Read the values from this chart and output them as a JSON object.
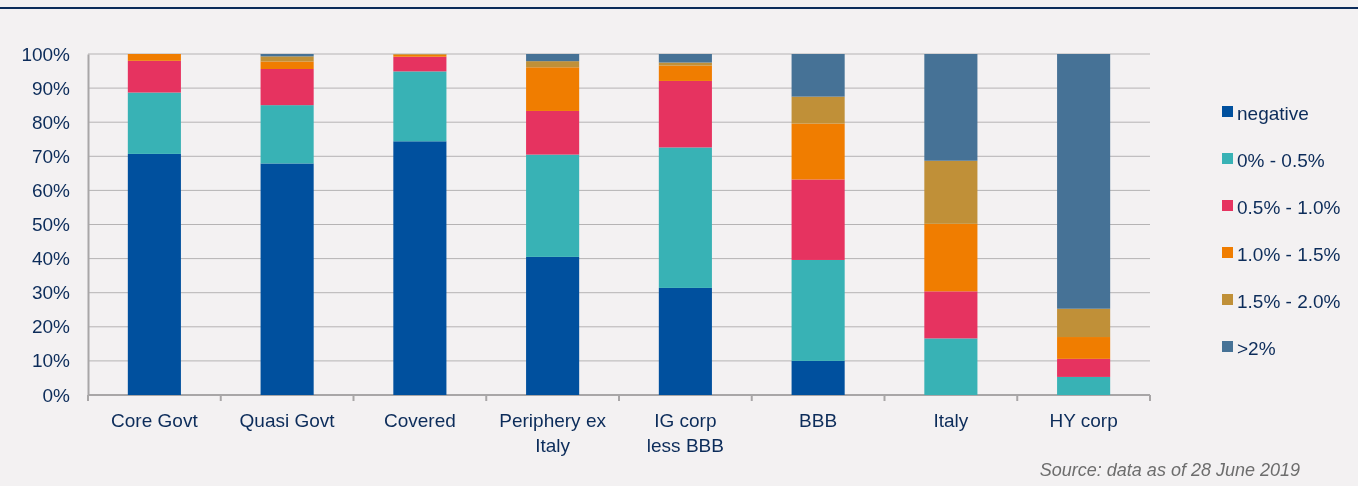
{
  "chart_data": {
    "type": "bar",
    "stacked": true,
    "categories": [
      "Core Govt",
      "Quasi Govt",
      "Covered",
      "Periphery ex Italy",
      "IG corp less BBB",
      "BBB",
      "Italy",
      "HY corp"
    ],
    "series": [
      {
        "name": "negative",
        "color": "#00509e",
        "values": [
          70.7,
          67.9,
          74.4,
          40.5,
          31.4,
          10.0,
          0,
          0
        ]
      },
      {
        "name": "0% - 0.5%",
        "color": "#38b2b5",
        "values": [
          18.0,
          17.1,
          20.5,
          30.0,
          41.2,
          29.6,
          16.6,
          5.3
        ]
      },
      {
        "name": "0.5% - 1.0%",
        "color": "#e63360",
        "values": [
          9.3,
          10.6,
          4.3,
          12.8,
          19.5,
          23.6,
          13.8,
          5.3
        ]
      },
      {
        "name": "1.0% - 1.5%",
        "color": "#f07d00",
        "values": [
          2.0,
          2.2,
          0.6,
          12.8,
          4.5,
          16.4,
          19.8,
          6.4
        ]
      },
      {
        "name": "1.5% - 2.0%",
        "color": "#c09038",
        "values": [
          0,
          1.5,
          0.2,
          1.8,
          0.9,
          7.9,
          18.5,
          8.3
        ]
      },
      {
        "name": ">2%",
        "color": "#467296",
        "values": [
          0,
          0.7,
          0,
          2.1,
          2.5,
          12.5,
          31.3,
          74.7
        ]
      }
    ],
    "ylim": [
      0,
      100
    ],
    "yticks": [
      {
        "value": 0,
        "label": "0%"
      },
      {
        "value": 10,
        "label": "10%"
      },
      {
        "value": 20,
        "label": "20%"
      },
      {
        "value": 30,
        "label": "30%"
      },
      {
        "value": 40,
        "label": "40%"
      },
      {
        "value": 50,
        "label": "50%"
      },
      {
        "value": 60,
        "label": "60%"
      },
      {
        "value": 70,
        "label": "70%"
      },
      {
        "value": 80,
        "label": "80%"
      },
      {
        "value": 90,
        "label": "90%"
      },
      {
        "value": 100,
        "label": "100%"
      }
    ],
    "grid": "y",
    "legend": "right",
    "annotations": [
      "Source: data as of 28 June 2019"
    ]
  }
}
